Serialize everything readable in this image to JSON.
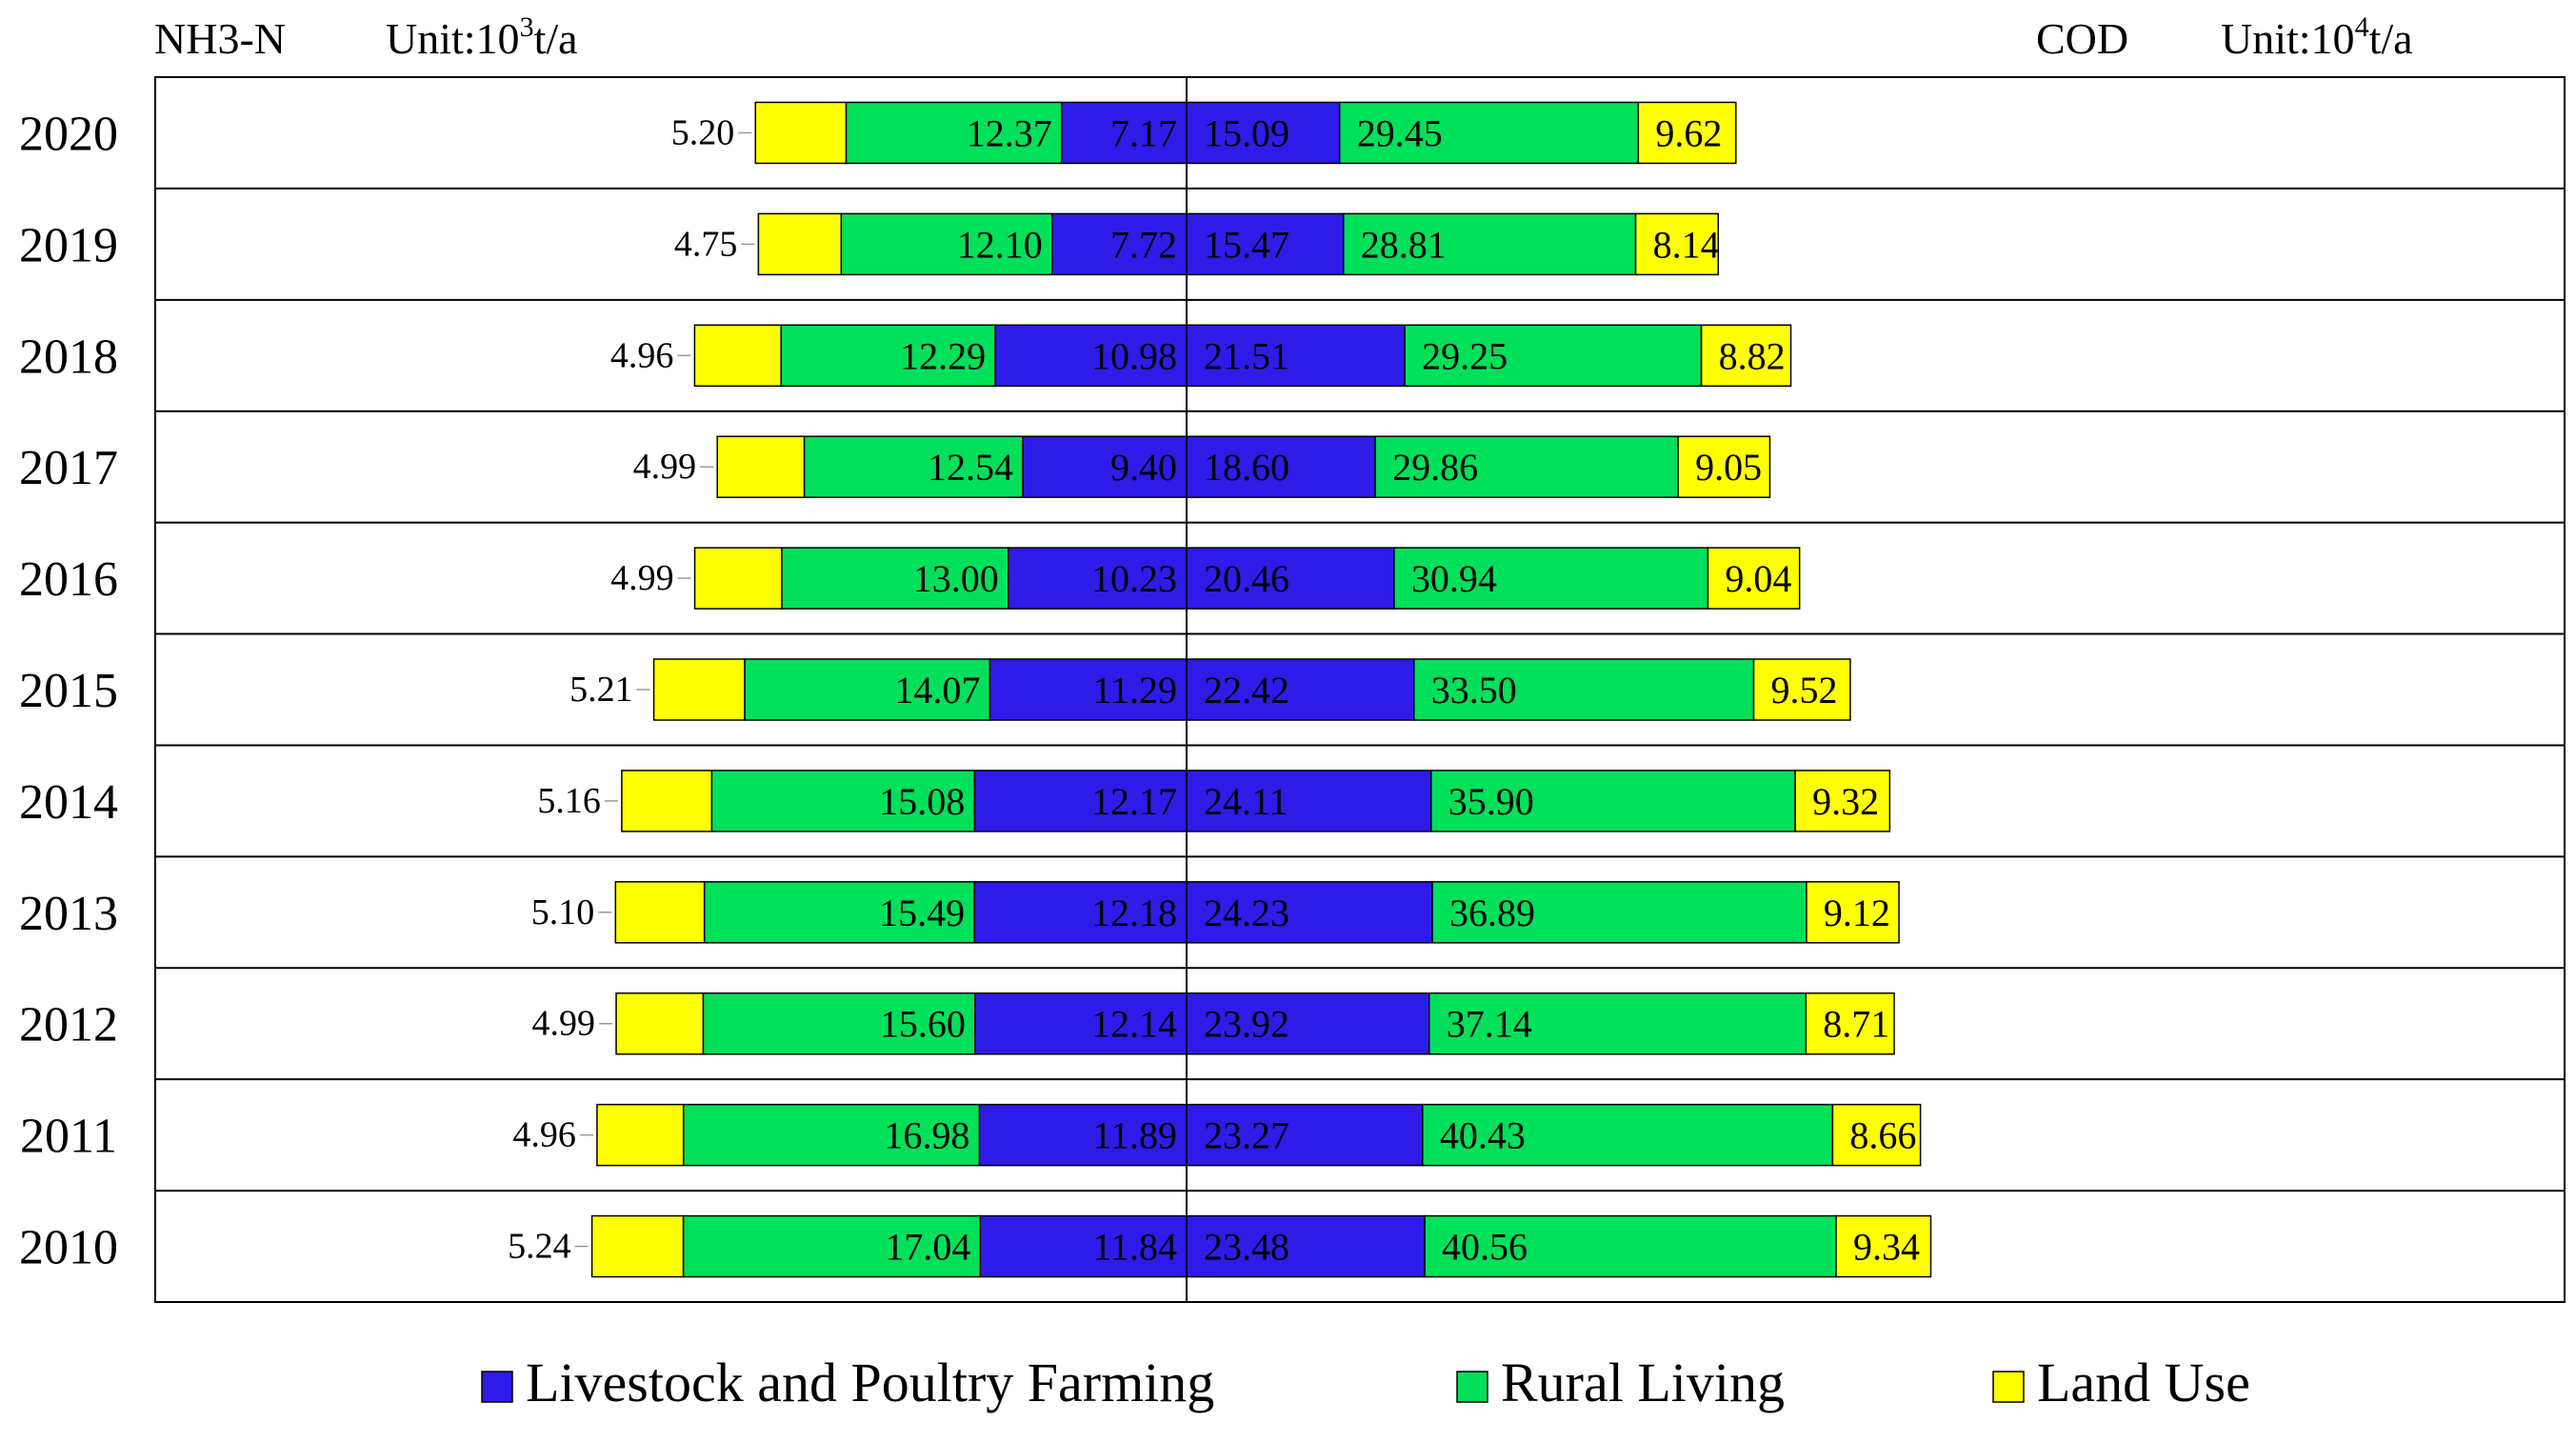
{
  "header": {
    "left_title": "NH3-N",
    "left_unit_prefix": "Unit:10",
    "left_unit_exp": "3",
    "left_unit_suffix": "t/a",
    "right_title": "COD",
    "right_unit_prefix": "Unit:10",
    "right_unit_exp": "4",
    "right_unit_suffix": "t/a"
  },
  "chart_data": {
    "type": "bar",
    "orientation": "horizontal",
    "stacked": true,
    "layout": "back-to-back",
    "categories": [
      "2020",
      "2019",
      "2018",
      "2017",
      "2016",
      "2015",
      "2014",
      "2013",
      "2012",
      "2011",
      "2010"
    ],
    "colors": {
      "Livestock and Poultry Farming": "#2E1BE8",
      "Rural Living": "#00E05A",
      "Land Use": "#FFFF00"
    },
    "nh3n": {
      "unit": "Unit:10^3t/a",
      "series": [
        {
          "name": "Livestock and Poultry Farming",
          "values": [
            7.17,
            7.72,
            10.98,
            9.4,
            10.23,
            11.29,
            12.17,
            12.18,
            12.14,
            11.89,
            11.84
          ]
        },
        {
          "name": "Rural Living",
          "values": [
            12.37,
            12.1,
            12.29,
            12.54,
            13.0,
            14.07,
            15.08,
            15.49,
            15.6,
            16.98,
            17.04
          ]
        },
        {
          "name": "Land Use",
          "values": [
            5.2,
            4.75,
            4.96,
            4.99,
            4.99,
            5.21,
            5.16,
            5.1,
            4.99,
            4.96,
            5.24
          ]
        }
      ]
    },
    "cod": {
      "unit": "Unit:10^4t/a",
      "series": [
        {
          "name": "Livestock and Poultry Farming",
          "values": [
            15.09,
            15.47,
            21.51,
            18.6,
            20.46,
            22.42,
            24.11,
            24.23,
            23.92,
            23.27,
            23.48
          ]
        },
        {
          "name": "Rural Living",
          "values": [
            29.45,
            28.81,
            29.25,
            29.86,
            30.94,
            33.5,
            35.9,
            36.89,
            37.14,
            40.43,
            40.56
          ]
        },
        {
          "name": "Land Use",
          "values": [
            9.62,
            8.14,
            8.82,
            9.05,
            9.04,
            9.52,
            9.32,
            9.12,
            8.71,
            8.66,
            9.34
          ]
        }
      ]
    },
    "legend": [
      "Livestock and Poultry Farming",
      "Rural Living",
      "Land Use"
    ],
    "legend_position": "bottom",
    "grid": false
  }
}
